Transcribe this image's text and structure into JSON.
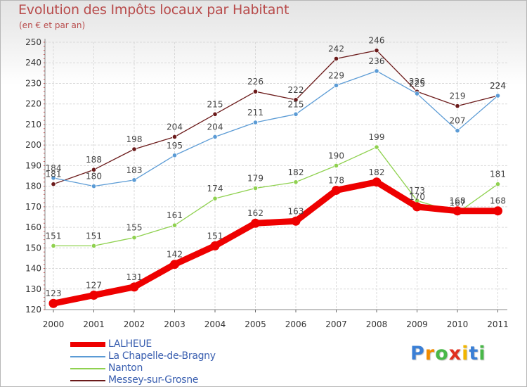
{
  "chart_data": {
    "type": "line",
    "title": "Evolution des Impôts locaux par Habitant",
    "subtitle": "(en € et par an)",
    "xlabel": "",
    "ylabel": "",
    "ylim": [
      120,
      250
    ],
    "yticks": [
      120,
      130,
      140,
      150,
      160,
      170,
      180,
      190,
      200,
      210,
      220,
      230,
      240,
      250
    ],
    "categories": [
      "2000",
      "2001",
      "2002",
      "2003",
      "2004",
      "2005",
      "2006",
      "2007",
      "2008",
      "2009",
      "2010",
      "2011"
    ],
    "grid": true,
    "legend_position": "bottom-left",
    "series": [
      {
        "name": "Messey-sur-Grosne",
        "color": "#6b1a1a",
        "values": [
          181,
          188,
          198,
          204,
          215,
          226,
          222,
          242,
          246,
          226,
          219,
          224
        ]
      },
      {
        "name": "La Chapelle-de-Bragny",
        "color": "#5b9bd5",
        "values": [
          184,
          180,
          183,
          195,
          204,
          211,
          215,
          229,
          236,
          225,
          207,
          224
        ]
      },
      {
        "name": "Nanton",
        "color": "#8fd14f",
        "values": [
          151,
          151,
          155,
          161,
          174,
          179,
          182,
          190,
          199,
          173,
          167,
          181
        ]
      },
      {
        "name": "LALHEUE",
        "color": "#ee0000",
        "values": [
          123,
          127,
          131,
          142,
          151,
          162,
          163,
          178,
          182,
          170,
          168,
          168
        ]
      }
    ]
  },
  "legend": {
    "items": [
      {
        "name": "LALHEUE",
        "color": "#ee0000"
      },
      {
        "name": "La Chapelle-de-Bragny",
        "color": "#5b9bd5"
      },
      {
        "name": "Nanton",
        "color": "#8fd14f"
      },
      {
        "name": "Messey-sur-Grosne",
        "color": "#6b1a1a"
      }
    ]
  },
  "brand": {
    "letters": [
      "P",
      "r",
      "o",
      "x",
      "i",
      "t",
      "i"
    ],
    "colors": [
      "#3a7fd6",
      "#f28c00",
      "#49b848",
      "#e03020",
      "#f2b600",
      "#3a7fd6",
      "#49b848"
    ]
  }
}
